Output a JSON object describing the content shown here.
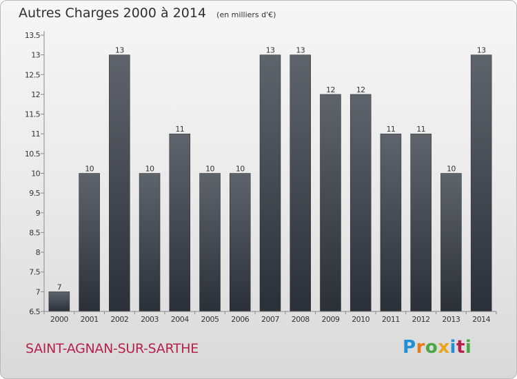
{
  "chart": {
    "title": "Autres Charges 2000 à 2014",
    "unit": "(en milliers d'€)"
  },
  "footer": {
    "commune": "SAINT-AGNAN-SUR-SARTHE",
    "logo": "Proxiti"
  },
  "colors": {
    "bar_top": "#5f646b",
    "bar_bottom": "#2b3038",
    "commune_text": "#b5214a",
    "logo_letters": [
      "#1f8fd6",
      "#e87a1d",
      "#49a843",
      "#e8a51d",
      "#1f8fd6",
      "#b5214a",
      "#49a843"
    ]
  },
  "chart_data": {
    "type": "bar",
    "categories": [
      "2000",
      "2001",
      "2002",
      "2003",
      "2004",
      "2005",
      "2006",
      "2007",
      "2008",
      "2009",
      "2010",
      "2011",
      "2012",
      "2013",
      "2014"
    ],
    "values": [
      7,
      10,
      13,
      10,
      11,
      10,
      10,
      13,
      13,
      12,
      12,
      11,
      11,
      10,
      13
    ],
    "data_labels": [
      "7",
      "10",
      "13",
      "10",
      "11",
      "10",
      "10",
      "13",
      "13",
      "12",
      "12",
      "11",
      "11",
      "10",
      "13"
    ],
    "y_ticks": [
      6.5,
      7,
      7.5,
      8,
      8.5,
      9,
      9.5,
      10,
      10.5,
      11,
      11.5,
      12,
      12.5,
      13,
      13.5
    ],
    "y_tick_labels": [
      "6.5",
      "7",
      "7.5",
      "8",
      "8.5",
      "9",
      "9.5",
      "10",
      "10.5",
      "11",
      "11.5",
      "12",
      "12.5",
      "13",
      "13.5"
    ],
    "ylim": [
      6.5,
      13.5
    ],
    "xlabel": "",
    "ylabel": "",
    "grid": false,
    "legend": "none"
  }
}
